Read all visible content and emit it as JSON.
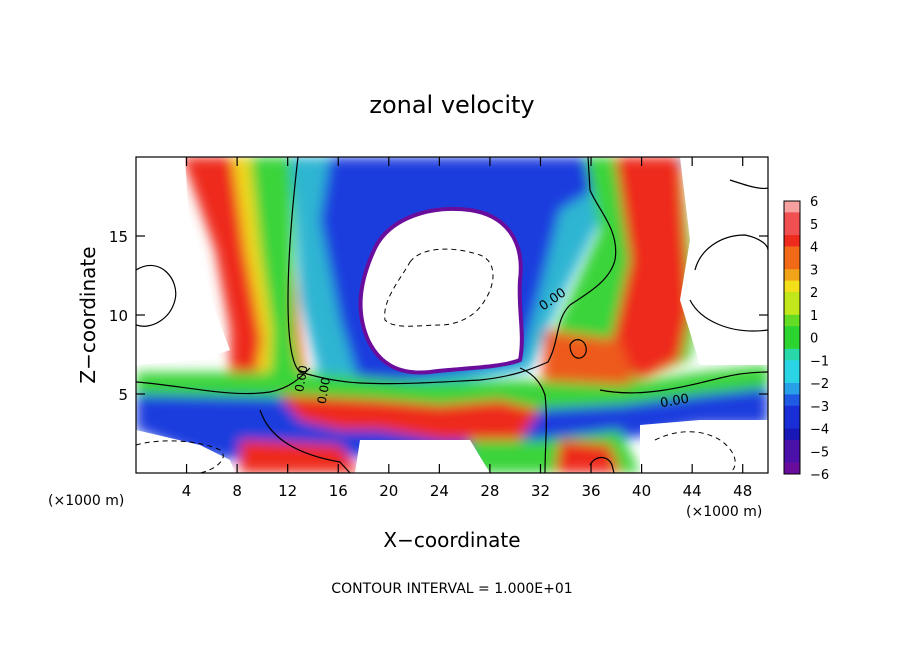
{
  "chart_data": {
    "type": "heatmap",
    "title": "zonal velocity",
    "xlabel": "X−coordinate",
    "ylabel": "Z−coordinate",
    "x_unit": "(×1000 m)",
    "x_unit_right": "(×1000 m)",
    "footer": "CONTOUR INTERVAL = 1.000E+01",
    "xlim": [
      0,
      50
    ],
    "ylim": [
      0,
      20
    ],
    "x_ticks": [
      "4",
      "8",
      "12",
      "16",
      "20",
      "24",
      "28",
      "32",
      "36",
      "40",
      "44",
      "48"
    ],
    "y_ticks": [
      "5",
      "10",
      "15"
    ],
    "colorbar": {
      "range": [
        -6,
        6
      ],
      "labels": [
        "6",
        "5",
        "4",
        "3",
        "2",
        "1",
        "0",
        "−1",
        "−2",
        "−3",
        "−4",
        "−5",
        "−6"
      ]
    },
    "contour_labels": [
      "0.00",
      "0.00",
      "0.00",
      "0.00"
    ]
  }
}
